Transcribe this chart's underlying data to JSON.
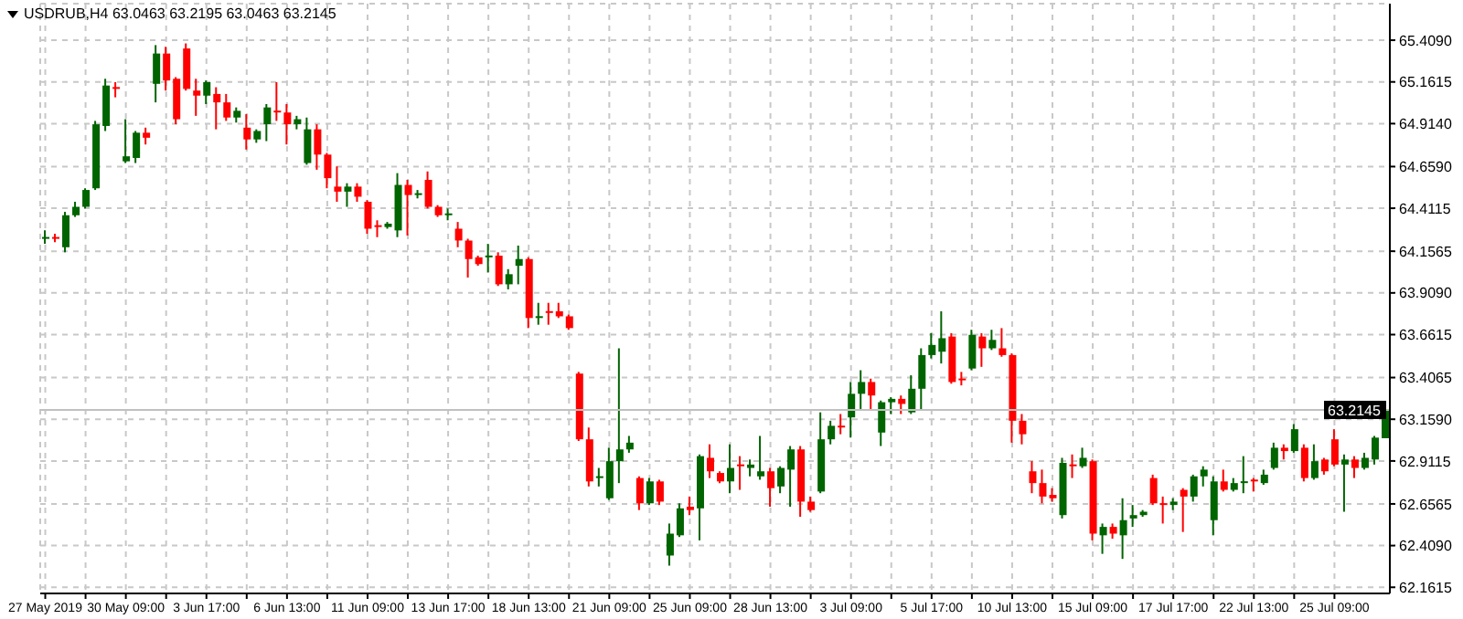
{
  "chart_data": {
    "type": "candlestick",
    "title": "USDRUB,H4 63.0463 63.2195 63.0463 63.2145",
    "categories": [
      "27 May 2019",
      null,
      null,
      null,
      null,
      null,
      null,
      null,
      "30 May 09:00",
      null,
      null,
      null,
      null,
      null,
      null,
      null,
      "3 Jun 17:00",
      null,
      null,
      null,
      null,
      null,
      null,
      null,
      "6 Jun 13:00",
      null,
      null,
      null,
      null,
      null,
      null,
      null,
      "11 Jun 09:00",
      null,
      null,
      null,
      null,
      null,
      null,
      null,
      "13 Jun 17:00",
      null,
      null,
      null,
      null,
      null,
      null,
      null,
      "18 Jun 13:00",
      null,
      null,
      null,
      null,
      null,
      null,
      null,
      "21 Jun 09:00",
      null,
      null,
      null,
      null,
      null,
      null,
      null,
      "25 Jun 09:00",
      null,
      null,
      null,
      null,
      null,
      null,
      null,
      "28 Jun 13:00",
      null,
      null,
      null,
      null,
      null,
      null,
      null,
      "3 Jul 09:00",
      null,
      null,
      null,
      null,
      null,
      null,
      null,
      "5 Jul 17:00",
      null,
      null,
      null,
      null,
      null,
      null,
      null,
      "10 Jul 13:00",
      null,
      null,
      null,
      null,
      null,
      null,
      null,
      "15 Jul 09:00",
      null,
      null,
      null,
      null,
      null,
      null,
      null,
      "17 Jul 17:00",
      null,
      null,
      null,
      null,
      null,
      null,
      null,
      "22 Jul 13:00",
      null,
      null,
      null,
      null,
      null,
      null,
      null,
      "25 Jul 09:00",
      null,
      null,
      null,
      null,
      null
    ],
    "ohlc": [
      [
        64.23,
        64.28,
        64.2,
        64.24
      ],
      [
        64.24,
        64.26,
        64.21,
        64.23
      ],
      [
        64.18,
        64.39,
        64.15,
        64.37
      ],
      [
        64.37,
        64.45,
        64.36,
        64.42
      ],
      [
        64.42,
        64.53,
        64.41,
        64.52
      ],
      [
        64.53,
        64.93,
        64.52,
        64.91
      ],
      [
        64.9,
        65.18,
        64.87,
        65.14
      ],
      [
        65.13,
        65.16,
        65.07,
        65.12
      ],
      [
        64.69,
        64.94,
        64.68,
        64.72
      ],
      [
        64.71,
        64.87,
        64.68,
        64.86
      ],
      [
        64.86,
        64.89,
        64.79,
        64.83
      ],
      [
        65.15,
        65.38,
        65.04,
        65.33
      ],
      [
        65.33,
        65.37,
        65.11,
        65.17
      ],
      [
        65.18,
        65.19,
        64.91,
        64.94
      ],
      [
        65.36,
        65.39,
        65.11,
        65.12
      ],
      [
        65.11,
        65.18,
        64.96,
        65.08
      ],
      [
        65.08,
        65.17,
        65.03,
        65.16
      ],
      [
        65.09,
        65.13,
        64.88,
        65.04
      ],
      [
        65.04,
        65.09,
        64.93,
        64.95
      ],
      [
        64.95,
        65.01,
        64.92,
        64.99
      ],
      [
        64.89,
        64.97,
        64.76,
        64.82
      ],
      [
        64.82,
        64.88,
        64.8,
        64.87
      ],
      [
        64.91,
        65.03,
        64.81,
        65.01
      ],
      [
        64.99,
        65.16,
        64.93,
        64.98
      ],
      [
        64.98,
        65.03,
        64.79,
        64.91
      ],
      [
        64.91,
        64.96,
        64.88,
        64.94
      ],
      [
        64.68,
        64.95,
        64.67,
        64.88
      ],
      [
        64.88,
        64.91,
        64.64,
        64.73
      ],
      [
        64.73,
        64.74,
        64.53,
        64.59
      ],
      [
        64.54,
        64.66,
        64.45,
        64.51
      ],
      [
        64.51,
        64.56,
        64.42,
        64.54
      ],
      [
        64.54,
        64.56,
        64.45,
        64.48
      ],
      [
        64.45,
        64.46,
        64.26,
        64.29
      ],
      [
        64.31,
        64.34,
        64.24,
        64.3
      ],
      [
        64.3,
        64.33,
        64.29,
        64.32
      ],
      [
        64.28,
        64.62,
        64.24,
        64.55
      ],
      [
        64.55,
        64.58,
        64.25,
        64.49
      ],
      [
        64.49,
        64.52,
        64.47,
        64.5
      ],
      [
        64.58,
        64.63,
        64.41,
        64.42
      ],
      [
        64.42,
        64.43,
        64.36,
        64.37
      ],
      [
        64.37,
        64.41,
        64.34,
        64.38
      ],
      [
        64.29,
        64.33,
        64.18,
        64.22
      ],
      [
        64.22,
        64.23,
        64.0,
        64.11
      ],
      [
        64.12,
        64.13,
        64.07,
        64.08
      ],
      [
        64.12,
        64.2,
        64.03,
        64.13
      ],
      [
        64.13,
        64.15,
        63.95,
        63.96
      ],
      [
        63.96,
        64.05,
        63.93,
        64.02
      ],
      [
        64.07,
        64.19,
        63.96,
        64.11
      ],
      [
        64.11,
        64.12,
        63.7,
        63.76
      ],
      [
        63.76,
        63.85,
        63.72,
        63.77
      ],
      [
        63.8,
        63.85,
        63.72,
        63.79
      ],
      [
        63.8,
        63.85,
        63.76,
        63.77
      ],
      [
        63.77,
        63.78,
        63.69,
        63.7
      ],
      [
        63.43,
        63.44,
        63.03,
        63.04
      ],
      [
        63.04,
        63.11,
        62.76,
        62.79
      ],
      [
        62.81,
        62.87,
        62.76,
        62.82
      ],
      [
        62.69,
        62.99,
        62.68,
        62.91
      ],
      [
        62.91,
        63.58,
        62.78,
        62.98
      ],
      [
        62.98,
        63.06,
        62.96,
        63.02
      ],
      [
        62.81,
        62.82,
        62.62,
        62.66
      ],
      [
        62.66,
        62.81,
        62.65,
        62.79
      ],
      [
        62.79,
        62.8,
        62.65,
        62.67
      ],
      [
        62.35,
        62.54,
        62.29,
        62.48
      ],
      [
        62.47,
        62.66,
        62.46,
        62.63
      ],
      [
        62.64,
        62.7,
        62.59,
        62.62
      ],
      [
        62.63,
        62.95,
        62.44,
        62.94
      ],
      [
        62.93,
        63.01,
        62.81,
        62.85
      ],
      [
        62.84,
        62.85,
        62.78,
        62.79
      ],
      [
        62.79,
        63.01,
        62.72,
        62.87
      ],
      [
        62.89,
        62.94,
        62.74,
        62.88
      ],
      [
        62.87,
        62.92,
        62.82,
        62.89
      ],
      [
        62.82,
        63.06,
        62.8,
        62.85
      ],
      [
        62.85,
        62.87,
        62.64,
        62.75
      ],
      [
        62.76,
        62.88,
        62.72,
        62.87
      ],
      [
        62.86,
        63.0,
        62.64,
        62.98
      ],
      [
        62.98,
        63.0,
        62.58,
        62.67
      ],
      [
        62.67,
        62.7,
        62.61,
        62.62
      ],
      [
        62.73,
        63.2,
        62.72,
        63.04
      ],
      [
        63.04,
        63.15,
        63.01,
        63.12
      ],
      [
        63.12,
        63.19,
        63.07,
        63.11
      ],
      [
        63.17,
        63.38,
        63.05,
        63.31
      ],
      [
        63.31,
        63.45,
        63.22,
        63.38
      ],
      [
        63.38,
        63.4,
        63.22,
        63.3
      ],
      [
        63.08,
        63.27,
        63.0,
        63.26
      ],
      [
        63.26,
        63.29,
        63.19,
        63.28
      ],
      [
        63.28,
        63.3,
        63.19,
        63.25
      ],
      [
        63.2,
        63.42,
        63.19,
        63.34
      ],
      [
        63.34,
        63.58,
        63.21,
        63.54
      ],
      [
        63.54,
        63.67,
        63.52,
        63.6
      ],
      [
        63.56,
        63.8,
        63.49,
        63.64
      ],
      [
        63.65,
        63.67,
        63.37,
        63.38
      ],
      [
        63.4,
        63.44,
        63.36,
        63.39
      ],
      [
        63.46,
        63.69,
        63.45,
        63.66
      ],
      [
        63.65,
        63.67,
        63.47,
        63.58
      ],
      [
        63.58,
        63.69,
        63.57,
        63.63
      ],
      [
        63.58,
        63.7,
        63.53,
        63.54
      ],
      [
        63.54,
        63.55,
        63.02,
        63.15
      ],
      [
        63.15,
        63.19,
        63.01,
        63.07
      ],
      [
        62.85,
        62.91,
        62.72,
        62.78
      ],
      [
        62.78,
        62.86,
        62.66,
        62.7
      ],
      [
        62.71,
        62.75,
        62.67,
        62.69
      ],
      [
        62.59,
        62.93,
        62.57,
        62.9
      ],
      [
        62.89,
        62.95,
        62.81,
        62.88
      ],
      [
        62.88,
        62.99,
        62.87,
        62.93
      ],
      [
        62.91,
        62.92,
        62.44,
        62.48
      ],
      [
        62.47,
        62.54,
        62.36,
        62.52
      ],
      [
        62.52,
        62.54,
        62.45,
        62.48
      ],
      [
        62.47,
        62.69,
        62.33,
        62.56
      ],
      [
        62.57,
        62.65,
        62.52,
        62.59
      ],
      [
        62.59,
        62.62,
        62.58,
        62.61
      ],
      [
        62.81,
        62.83,
        62.65,
        62.66
      ],
      [
        62.66,
        62.7,
        62.54,
        62.65
      ],
      [
        62.65,
        62.69,
        62.62,
        62.67
      ],
      [
        62.74,
        62.75,
        62.49,
        62.7
      ],
      [
        62.7,
        62.83,
        62.67,
        62.82
      ],
      [
        62.82,
        62.88,
        62.76,
        62.86
      ],
      [
        62.56,
        62.82,
        62.47,
        62.79
      ],
      [
        62.79,
        62.86,
        62.73,
        62.74
      ],
      [
        62.74,
        62.81,
        62.73,
        62.78
      ],
      [
        62.78,
        62.94,
        62.72,
        62.79
      ],
      [
        62.8,
        62.81,
        62.73,
        62.79
      ],
      [
        62.78,
        62.86,
        62.77,
        62.83
      ],
      [
        62.87,
        63.02,
        62.86,
        62.99
      ],
      [
        62.99,
        63.01,
        62.92,
        62.97
      ],
      [
        62.97,
        63.13,
        62.96,
        63.1
      ],
      [
        62.99,
        63.01,
        62.79,
        62.81
      ],
      [
        62.81,
        63.01,
        62.8,
        62.91
      ],
      [
        62.92,
        62.93,
        62.83,
        62.85
      ],
      [
        63.04,
        63.1,
        62.88,
        62.89
      ],
      [
        62.89,
        62.95,
        62.61,
        62.92
      ],
      [
        62.92,
        62.94,
        62.81,
        62.87
      ],
      [
        62.87,
        62.96,
        62.86,
        62.93
      ],
      [
        62.92,
        63.06,
        62.89,
        63.05
      ],
      [
        63.0463,
        63.2195,
        63.0463,
        63.2145
      ]
    ],
    "colors": [
      "#006400",
      "#ff0000",
      "#006400",
      "#006400",
      "#006400",
      "#006400",
      "#006400",
      "#ff0000",
      "#006400",
      "#006400",
      "#ff0000",
      "#006400",
      "#ff0000",
      "#ff0000",
      "#ff0000",
      "#ff0000",
      "#006400",
      "#ff0000",
      "#ff0000",
      "#006400",
      "#ff0000",
      "#006400",
      "#006400",
      "#ff0000",
      "#ff0000",
      "#006400",
      "#006400",
      "#ff0000",
      "#ff0000",
      "#ff0000",
      "#006400",
      "#ff0000",
      "#ff0000",
      "#ff0000",
      "#006400",
      "#006400",
      "#ff0000",
      "#006400",
      "#ff0000",
      "#ff0000",
      "#006400",
      "#ff0000",
      "#ff0000",
      "#ff0000",
      "#006400",
      "#ff0000",
      "#006400",
      "#006400",
      "#ff0000",
      "#006400",
      "#ff0000",
      "#ff0000",
      "#ff0000",
      "#ff0000",
      "#ff0000",
      "#006400",
      "#006400",
      "#006400",
      "#006400",
      "#ff0000",
      "#006400",
      "#ff0000",
      "#006400",
      "#006400",
      "#ff0000",
      "#006400",
      "#ff0000",
      "#ff0000",
      "#006400",
      "#ff0000",
      "#006400",
      "#006400",
      "#ff0000",
      "#006400",
      "#006400",
      "#ff0000",
      "#ff0000",
      "#006400",
      "#006400",
      "#ff0000",
      "#006400",
      "#006400",
      "#ff0000",
      "#006400",
      "#006400",
      "#ff0000",
      "#006400",
      "#006400",
      "#006400",
      "#006400",
      "#ff0000",
      "#ff0000",
      "#006400",
      "#ff0000",
      "#006400",
      "#ff0000",
      "#ff0000",
      "#ff0000",
      "#ff0000",
      "#ff0000",
      "#ff0000",
      "#006400",
      "#ff0000",
      "#006400",
      "#ff0000",
      "#006400",
      "#ff0000",
      "#006400",
      "#006400",
      "#006400",
      "#ff0000",
      "#ff0000",
      "#006400",
      "#ff0000",
      "#006400",
      "#006400",
      "#006400",
      "#ff0000",
      "#006400",
      "#006400",
      "#ff0000",
      "#006400",
      "#006400",
      "#ff0000",
      "#006400",
      "#ff0000",
      "#006400",
      "#ff0000",
      "#ff0000",
      "#006400",
      "#ff0000",
      "#006400",
      "#006400",
      "#006400"
    ],
    "ylim": [
      62.125,
      65.626
    ],
    "yticks": [
      {
        "value": 62.1615,
        "label": "62.1615"
      },
      {
        "value": 62.409,
        "label": "62.4090"
      },
      {
        "value": 62.6565,
        "label": "62.6565"
      },
      {
        "value": 62.9115,
        "label": "62.9115"
      },
      {
        "value": 63.159,
        "label": "63.1590"
      },
      {
        "value": 63.4065,
        "label": "63.4065"
      },
      {
        "value": 63.6615,
        "label": "63.6615"
      },
      {
        "value": 63.909,
        "label": "63.9090"
      },
      {
        "value": 64.1565,
        "label": "64.1565"
      },
      {
        "value": 64.4115,
        "label": "64.4115"
      },
      {
        "value": 64.659,
        "label": "64.6590"
      },
      {
        "value": 64.914,
        "label": "64.9140"
      },
      {
        "value": 65.1615,
        "label": "65.1615"
      },
      {
        "value": 65.409,
        "label": "65.4090"
      }
    ],
    "ref_lines": [
      {
        "axis": "y",
        "value": 63.2145,
        "label": "63.2145",
        "color": "#c0c0c0"
      }
    ],
    "grid": true,
    "legend": false
  }
}
